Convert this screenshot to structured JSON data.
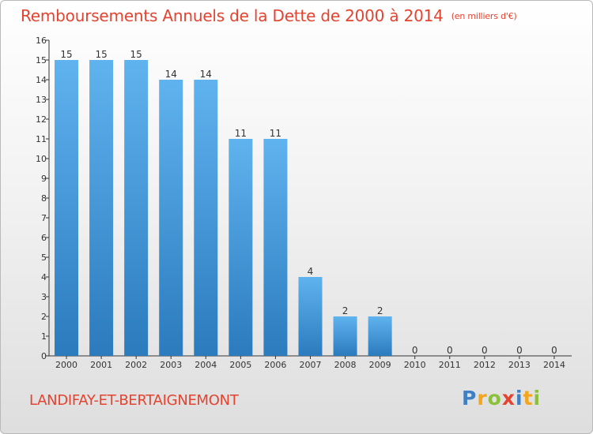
{
  "header": {
    "title": "Remboursements Annuels de la Dette de 2000 à 2014",
    "unit": "(en milliers d'€)"
  },
  "footer": {
    "commune": "LANDIFAY-ET-BERTAIGNEMONT",
    "logo": [
      "P",
      "r",
      "o",
      "x",
      "i",
      "t",
      "i"
    ]
  },
  "colors": {
    "title": "#e3432f",
    "bar_top": "#5fb3ee",
    "bar_bottom": "#2b7bbd"
  },
  "chart_data": {
    "type": "bar",
    "title": "Remboursements Annuels de la Dette de 2000 à 2014",
    "categories": [
      "2000",
      "2001",
      "2002",
      "2003",
      "2004",
      "2005",
      "2006",
      "2007",
      "2008",
      "2009",
      "2010",
      "2011",
      "2012",
      "2013",
      "2014"
    ],
    "values": [
      15,
      15,
      15,
      14,
      14,
      11,
      11,
      4,
      2,
      2,
      0,
      0,
      0,
      0,
      0
    ],
    "yticks": [
      0,
      1,
      2,
      3,
      4,
      5,
      6,
      7,
      8,
      9,
      10,
      11,
      12,
      13,
      14,
      15,
      16
    ],
    "ylim": [
      0,
      16
    ],
    "grid": false,
    "legend": "none"
  }
}
